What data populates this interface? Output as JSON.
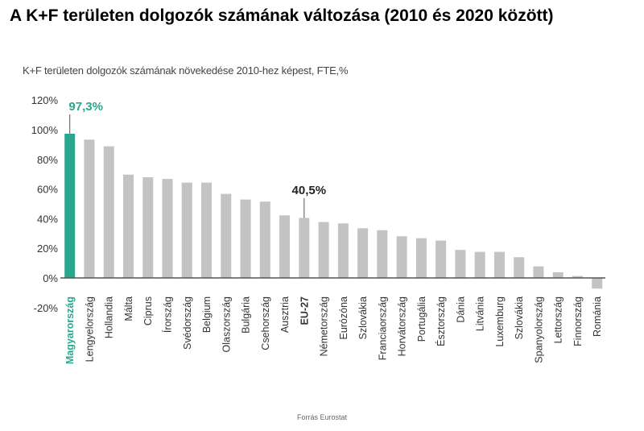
{
  "title": "A K+F területen dolgozók számának változása (2010 és 2020 között)",
  "source": "Forrás Eurostat",
  "colors": {
    "highlight": "#2aa68e",
    "bar": "#c3c3c3",
    "axis": "#555555",
    "eu": "#222222"
  },
  "chart_data": {
    "type": "bar",
    "title": "K+F területen dolgozók számának növekedése 2010-hez képest, FTE,%",
    "xlabel": "",
    "ylabel": "",
    "ylim": [
      -20,
      120
    ],
    "yticks": [
      -20,
      0,
      20,
      40,
      60,
      80,
      100,
      120
    ],
    "ytick_labels": [
      "-20%",
      "0%",
      "20%",
      "40%",
      "60%",
      "80%",
      "100%",
      "120%"
    ],
    "grid": false,
    "categories": [
      "Magyarország",
      "Lengyelország",
      "Hollandia",
      "Málta",
      "Ciprus",
      "Írország",
      "Svédország",
      "Belgium",
      "Olaszország",
      "Bulgária",
      "Csehország",
      "Ausztria",
      "EU-27",
      "Németország",
      "Eurózóna",
      "Szlovákia",
      "Franciaország",
      "Horvátország",
      "Portugália",
      "Észtország",
      "Dánia",
      "Litvánia",
      "Luxemburg",
      "Szlovákia",
      "Spanyolország",
      "Lettország",
      "Finnország",
      "Románia"
    ],
    "values": [
      97.3,
      93.3,
      88.8,
      69.7,
      67.9,
      66.8,
      64.3,
      64.3,
      56.7,
      52.9,
      51.5,
      42.2,
      40.5,
      37.7,
      36.8,
      33.5,
      32.2,
      28.1,
      26.8,
      25.2,
      18.9,
      17.6,
      17.6,
      14.0,
      7.8,
      3.8,
      1.3,
      -7.2
    ],
    "annotations": [
      {
        "category": "Magyarország",
        "text": "97,3%"
      },
      {
        "category": "EU-27",
        "text": "40,5%"
      }
    ]
  }
}
